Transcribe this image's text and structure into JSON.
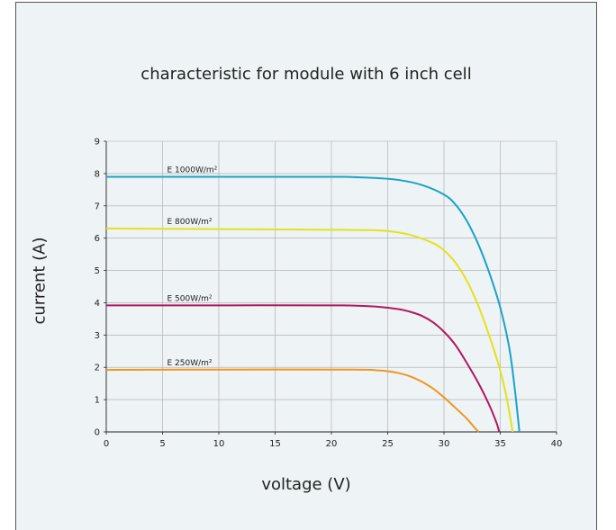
{
  "chart_data": {
    "type": "line",
    "title": "characteristic for module with 6 inch cell",
    "xlabel": "voltage (V)",
    "ylabel": "current (A)",
    "xlim": [
      0,
      40
    ],
    "ylim": [
      0,
      9
    ],
    "xticks": [
      0,
      5,
      10,
      15,
      20,
      25,
      30,
      35,
      40
    ],
    "yticks": [
      0,
      1,
      2,
      3,
      4,
      5,
      6,
      7,
      8,
      9
    ],
    "grid": true,
    "series": [
      {
        "name": "E 1000W/m²",
        "color": "#1aa3c8",
        "points": [
          [
            0,
            7.9
          ],
          [
            10,
            7.9
          ],
          [
            20,
            7.9
          ],
          [
            22,
            7.89
          ],
          [
            24,
            7.86
          ],
          [
            26,
            7.8
          ],
          [
            28,
            7.65
          ],
          [
            30,
            7.35
          ],
          [
            31,
            7.05
          ],
          [
            32,
            6.55
          ],
          [
            33,
            5.85
          ],
          [
            34,
            4.95
          ],
          [
            35,
            3.85
          ],
          [
            35.8,
            2.6
          ],
          [
            36.3,
            1.3
          ],
          [
            36.7,
            0
          ]
        ]
      },
      {
        "name": "E 800W/m²",
        "color": "#e3e21b",
        "points": [
          [
            0,
            6.3
          ],
          [
            10,
            6.28
          ],
          [
            20,
            6.26
          ],
          [
            23,
            6.25
          ],
          [
            25,
            6.22
          ],
          [
            27,
            6.1
          ],
          [
            29,
            5.85
          ],
          [
            30,
            5.62
          ],
          [
            31,
            5.25
          ],
          [
            32,
            4.7
          ],
          [
            33,
            3.95
          ],
          [
            34,
            3.0
          ],
          [
            35,
            1.9
          ],
          [
            35.6,
            1.0
          ],
          [
            36.1,
            0
          ]
        ]
      },
      {
        "name": "E 500W/m²",
        "color": "#b01860",
        "points": [
          [
            0,
            3.92
          ],
          [
            10,
            3.92
          ],
          [
            20,
            3.92
          ],
          [
            22,
            3.91
          ],
          [
            24,
            3.88
          ],
          [
            26,
            3.8
          ],
          [
            27,
            3.72
          ],
          [
            28,
            3.6
          ],
          [
            29,
            3.4
          ],
          [
            30,
            3.1
          ],
          [
            31,
            2.7
          ],
          [
            32,
            2.15
          ],
          [
            33,
            1.55
          ],
          [
            34,
            0.85
          ],
          [
            34.7,
            0.25
          ],
          [
            34.9,
            0
          ]
        ]
      },
      {
        "name": "E 250W/m²",
        "color": "#f0951e",
        "points": [
          [
            0,
            1.92
          ],
          [
            10,
            1.93
          ],
          [
            22,
            1.93
          ],
          [
            24,
            1.91
          ],
          [
            25,
            1.88
          ],
          [
            26,
            1.82
          ],
          [
            27,
            1.72
          ],
          [
            28,
            1.56
          ],
          [
            29,
            1.35
          ],
          [
            30,
            1.07
          ],
          [
            31,
            0.75
          ],
          [
            32,
            0.42
          ],
          [
            32.8,
            0.1
          ],
          [
            33.1,
            0
          ]
        ]
      }
    ]
  }
}
